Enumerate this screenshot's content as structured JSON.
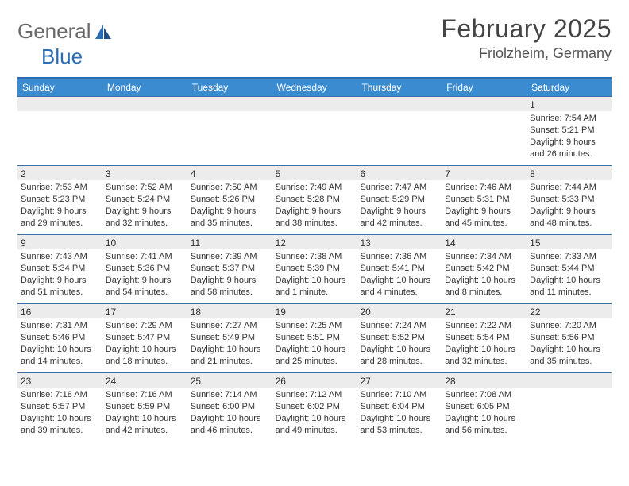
{
  "logo": {
    "text1": "General",
    "text2": "Blue"
  },
  "title": "February 2025",
  "location": "Friolzheim, Germany",
  "colors": {
    "header_bg": "#3b8bd0",
    "border": "#2a6db3",
    "daybar": "#ececec",
    "text": "#333333"
  },
  "weekdays": [
    "Sunday",
    "Monday",
    "Tuesday",
    "Wednesday",
    "Thursday",
    "Friday",
    "Saturday"
  ],
  "weeks": [
    [
      {
        "n": "",
        "sr": "",
        "ss": "",
        "dl": ""
      },
      {
        "n": "",
        "sr": "",
        "ss": "",
        "dl": ""
      },
      {
        "n": "",
        "sr": "",
        "ss": "",
        "dl": ""
      },
      {
        "n": "",
        "sr": "",
        "ss": "",
        "dl": ""
      },
      {
        "n": "",
        "sr": "",
        "ss": "",
        "dl": ""
      },
      {
        "n": "",
        "sr": "",
        "ss": "",
        "dl": ""
      },
      {
        "n": "1",
        "sr": "Sunrise: 7:54 AM",
        "ss": "Sunset: 5:21 PM",
        "dl": "Daylight: 9 hours and 26 minutes."
      }
    ],
    [
      {
        "n": "2",
        "sr": "Sunrise: 7:53 AM",
        "ss": "Sunset: 5:23 PM",
        "dl": "Daylight: 9 hours and 29 minutes."
      },
      {
        "n": "3",
        "sr": "Sunrise: 7:52 AM",
        "ss": "Sunset: 5:24 PM",
        "dl": "Daylight: 9 hours and 32 minutes."
      },
      {
        "n": "4",
        "sr": "Sunrise: 7:50 AM",
        "ss": "Sunset: 5:26 PM",
        "dl": "Daylight: 9 hours and 35 minutes."
      },
      {
        "n": "5",
        "sr": "Sunrise: 7:49 AM",
        "ss": "Sunset: 5:28 PM",
        "dl": "Daylight: 9 hours and 38 minutes."
      },
      {
        "n": "6",
        "sr": "Sunrise: 7:47 AM",
        "ss": "Sunset: 5:29 PM",
        "dl": "Daylight: 9 hours and 42 minutes."
      },
      {
        "n": "7",
        "sr": "Sunrise: 7:46 AM",
        "ss": "Sunset: 5:31 PM",
        "dl": "Daylight: 9 hours and 45 minutes."
      },
      {
        "n": "8",
        "sr": "Sunrise: 7:44 AM",
        "ss": "Sunset: 5:33 PM",
        "dl": "Daylight: 9 hours and 48 minutes."
      }
    ],
    [
      {
        "n": "9",
        "sr": "Sunrise: 7:43 AM",
        "ss": "Sunset: 5:34 PM",
        "dl": "Daylight: 9 hours and 51 minutes."
      },
      {
        "n": "10",
        "sr": "Sunrise: 7:41 AM",
        "ss": "Sunset: 5:36 PM",
        "dl": "Daylight: 9 hours and 54 minutes."
      },
      {
        "n": "11",
        "sr": "Sunrise: 7:39 AM",
        "ss": "Sunset: 5:37 PM",
        "dl": "Daylight: 9 hours and 58 minutes."
      },
      {
        "n": "12",
        "sr": "Sunrise: 7:38 AM",
        "ss": "Sunset: 5:39 PM",
        "dl": "Daylight: 10 hours and 1 minute."
      },
      {
        "n": "13",
        "sr": "Sunrise: 7:36 AM",
        "ss": "Sunset: 5:41 PM",
        "dl": "Daylight: 10 hours and 4 minutes."
      },
      {
        "n": "14",
        "sr": "Sunrise: 7:34 AM",
        "ss": "Sunset: 5:42 PM",
        "dl": "Daylight: 10 hours and 8 minutes."
      },
      {
        "n": "15",
        "sr": "Sunrise: 7:33 AM",
        "ss": "Sunset: 5:44 PM",
        "dl": "Daylight: 10 hours and 11 minutes."
      }
    ],
    [
      {
        "n": "16",
        "sr": "Sunrise: 7:31 AM",
        "ss": "Sunset: 5:46 PM",
        "dl": "Daylight: 10 hours and 14 minutes."
      },
      {
        "n": "17",
        "sr": "Sunrise: 7:29 AM",
        "ss": "Sunset: 5:47 PM",
        "dl": "Daylight: 10 hours and 18 minutes."
      },
      {
        "n": "18",
        "sr": "Sunrise: 7:27 AM",
        "ss": "Sunset: 5:49 PM",
        "dl": "Daylight: 10 hours and 21 minutes."
      },
      {
        "n": "19",
        "sr": "Sunrise: 7:25 AM",
        "ss": "Sunset: 5:51 PM",
        "dl": "Daylight: 10 hours and 25 minutes."
      },
      {
        "n": "20",
        "sr": "Sunrise: 7:24 AM",
        "ss": "Sunset: 5:52 PM",
        "dl": "Daylight: 10 hours and 28 minutes."
      },
      {
        "n": "21",
        "sr": "Sunrise: 7:22 AM",
        "ss": "Sunset: 5:54 PM",
        "dl": "Daylight: 10 hours and 32 minutes."
      },
      {
        "n": "22",
        "sr": "Sunrise: 7:20 AM",
        "ss": "Sunset: 5:56 PM",
        "dl": "Daylight: 10 hours and 35 minutes."
      }
    ],
    [
      {
        "n": "23",
        "sr": "Sunrise: 7:18 AM",
        "ss": "Sunset: 5:57 PM",
        "dl": "Daylight: 10 hours and 39 minutes."
      },
      {
        "n": "24",
        "sr": "Sunrise: 7:16 AM",
        "ss": "Sunset: 5:59 PM",
        "dl": "Daylight: 10 hours and 42 minutes."
      },
      {
        "n": "25",
        "sr": "Sunrise: 7:14 AM",
        "ss": "Sunset: 6:00 PM",
        "dl": "Daylight: 10 hours and 46 minutes."
      },
      {
        "n": "26",
        "sr": "Sunrise: 7:12 AM",
        "ss": "Sunset: 6:02 PM",
        "dl": "Daylight: 10 hours and 49 minutes."
      },
      {
        "n": "27",
        "sr": "Sunrise: 7:10 AM",
        "ss": "Sunset: 6:04 PM",
        "dl": "Daylight: 10 hours and 53 minutes."
      },
      {
        "n": "28",
        "sr": "Sunrise: 7:08 AM",
        "ss": "Sunset: 6:05 PM",
        "dl": "Daylight: 10 hours and 56 minutes."
      },
      {
        "n": "",
        "sr": "",
        "ss": "",
        "dl": ""
      }
    ]
  ]
}
